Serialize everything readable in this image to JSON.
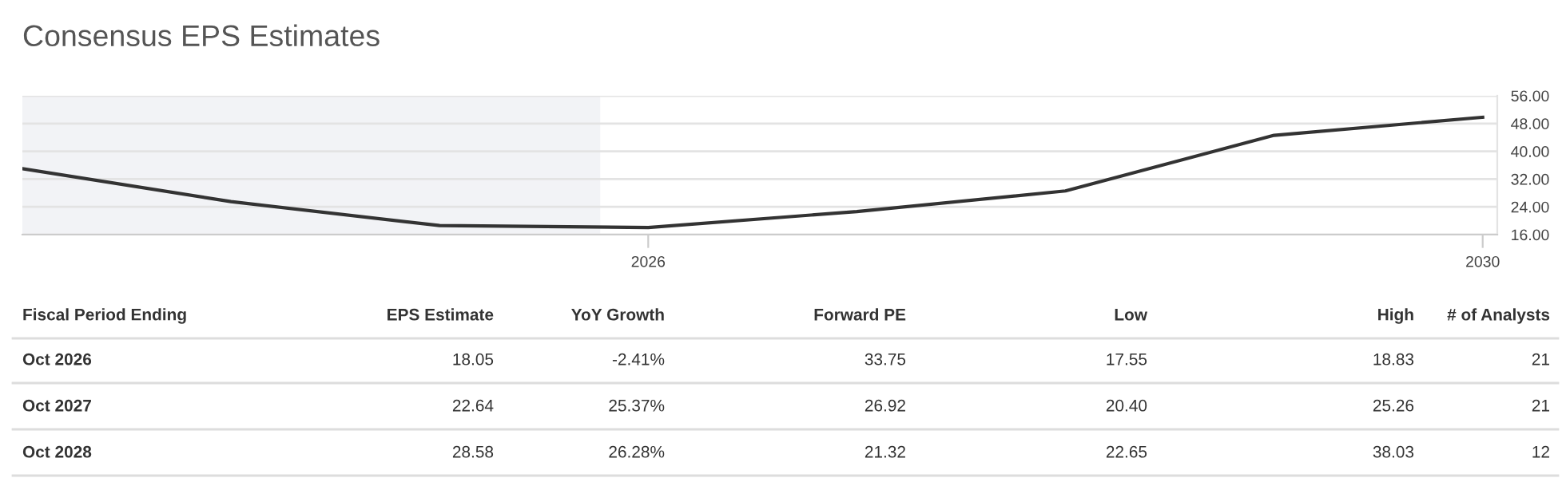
{
  "chart_data": {
    "type": "line",
    "title": "Consensus EPS Estimates",
    "x": [
      2023,
      2024,
      2025,
      2026,
      2027,
      2028,
      2029,
      2030
    ],
    "series": [
      {
        "color": "#333333",
        "values": [
          35.0,
          25.5,
          18.6,
          18.05,
          22.64,
          28.58,
          44.6,
          49.8
        ]
      }
    ],
    "xlim": [
      2023,
      2030.07
    ],
    "xticks": [
      2026,
      2030
    ],
    "ylim": [
      16,
      56
    ],
    "yticks": [
      {
        "value": 16,
        "label": "16.00"
      },
      {
        "value": 24,
        "label": "24.00"
      },
      {
        "value": 32,
        "label": "32.00"
      },
      {
        "value": 40,
        "label": "40.00"
      },
      {
        "value": 48,
        "label": "48.00"
      },
      {
        "value": 56,
        "label": "56.00"
      }
    ],
    "grid": "y",
    "marker": "none",
    "line_style": "solid",
    "legend": false,
    "bands": [
      {
        "axis": "x",
        "from": 2023,
        "to": 2025.77,
        "color": "#f2f3f6"
      }
    ],
    "annotations": [
      "Fiscal Period Ending",
      "EPS Estimate",
      "YoY Growth",
      "Forward PE",
      "Low",
      "High",
      "# of Analysts",
      "Oct 2026",
      "18.05",
      "-2.41%",
      "33.75",
      "17.55",
      "18.83",
      "21",
      "Oct 2027",
      "22.64",
      "25.37%",
      "26.92",
      "20.40",
      "25.26",
      "21",
      "Oct 2028",
      "28.58",
      "26.28%",
      "21.32",
      "22.65",
      "38.03",
      "12"
    ]
  }
}
